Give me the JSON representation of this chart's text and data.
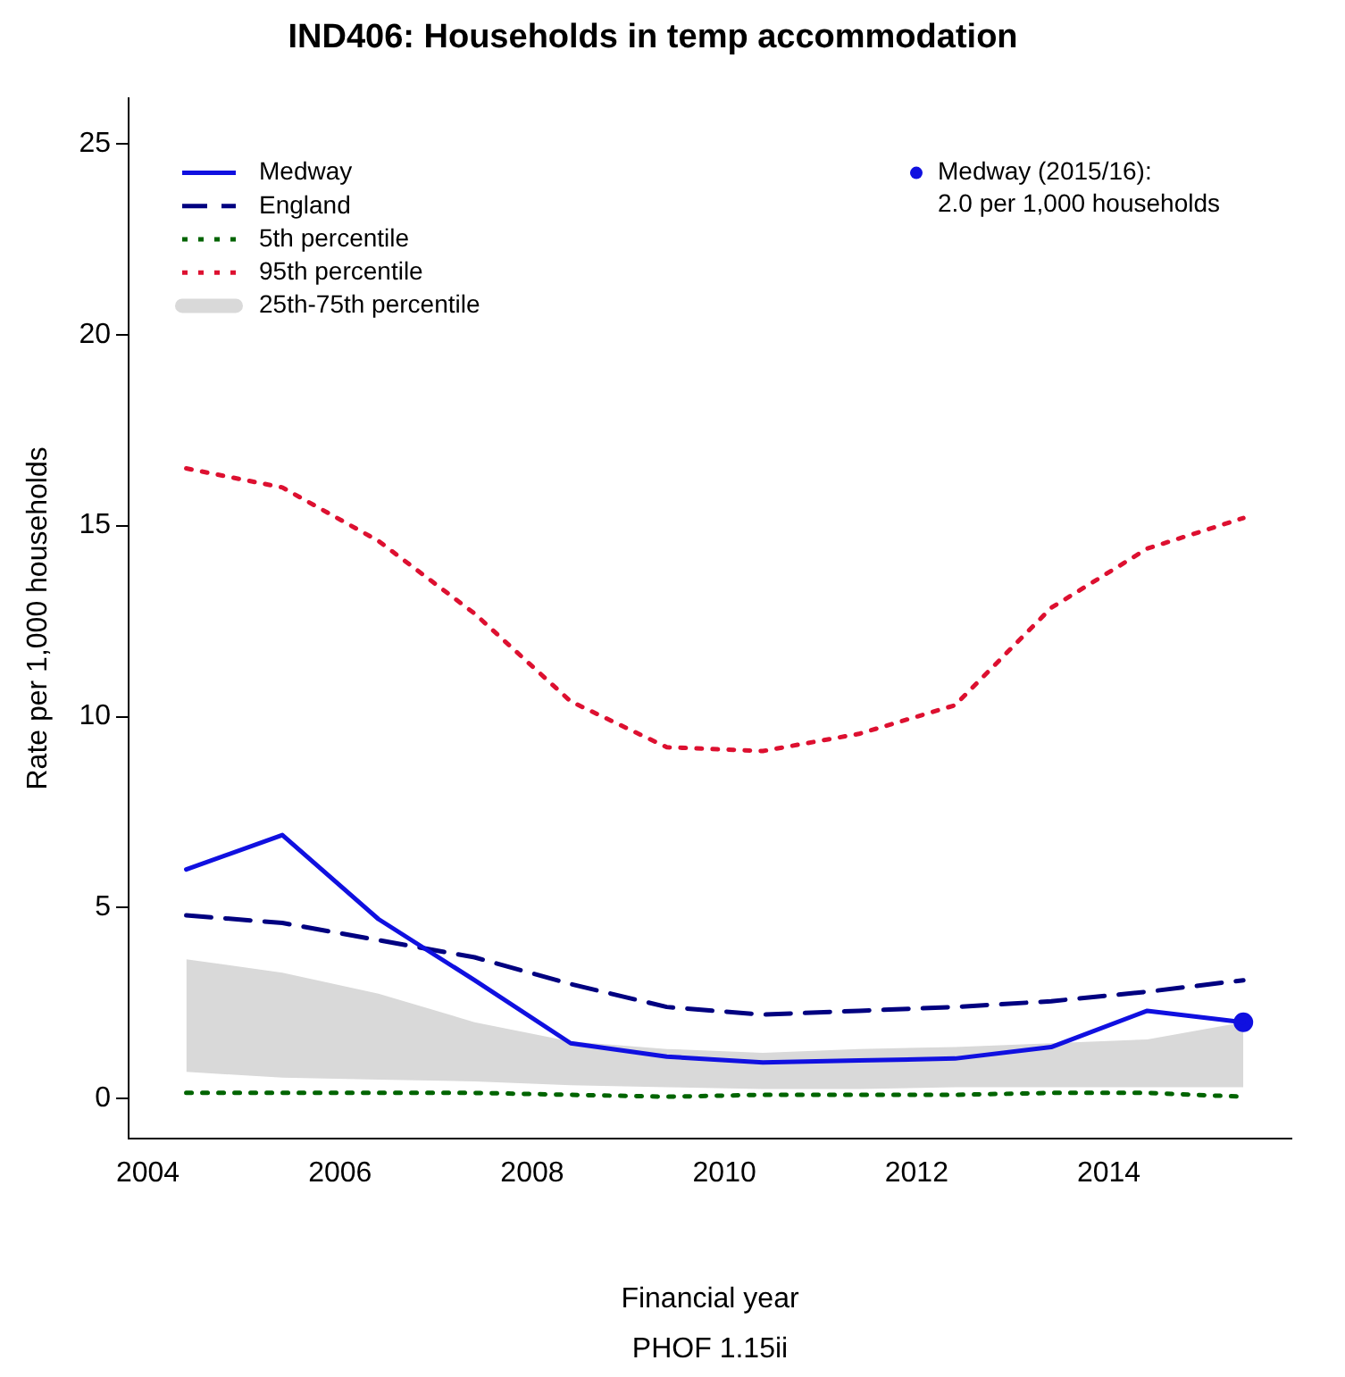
{
  "chart_data": {
    "type": "line",
    "title": "IND406: Households in temp accommodation",
    "xlabel": "Financial year",
    "ylabel": "Rate per 1,000 households",
    "annotations": [
      "PHOF 1.15ii"
    ],
    "x": [
      2004.4,
      2005.4,
      2006.4,
      2007.4,
      2008.4,
      2009.4,
      2010.4,
      2011.4,
      2012.4,
      2013.4,
      2014.4,
      2015.4
    ],
    "series": [
      {
        "name": "Medway",
        "color": "#1010e0",
        "line_style": "solid",
        "values": [
          6.0,
          6.9,
          4.7,
          3.1,
          1.45,
          1.1,
          0.95,
          1.0,
          1.05,
          1.35,
          2.3,
          2.0
        ]
      },
      {
        "name": "England",
        "color": "#000080",
        "line_style": "dashed",
        "values": [
          4.8,
          4.6,
          4.15,
          3.7,
          3.0,
          2.4,
          2.2,
          2.3,
          2.4,
          2.55,
          2.8,
          3.1
        ]
      },
      {
        "name": "5th percentile",
        "color": "#006400",
        "line_style": "dotted",
        "values": [
          0.15,
          0.15,
          0.15,
          0.15,
          0.1,
          0.05,
          0.1,
          0.1,
          0.1,
          0.15,
          0.15,
          0.05
        ]
      },
      {
        "name": "95th percentile",
        "color": "#dd1030",
        "line_style": "dotted",
        "values": [
          16.5,
          16.0,
          14.6,
          12.7,
          10.4,
          9.2,
          9.1,
          9.55,
          10.3,
          12.85,
          14.4,
          15.2
        ]
      },
      {
        "name": "25th-75th percentile",
        "type": "area",
        "color": "#d9d9d9",
        "values": [
          null,
          null,
          null,
          null,
          null,
          null,
          null,
          null,
          null,
          null,
          null,
          null
        ],
        "upper": [
          3.65,
          3.3,
          2.75,
          2.0,
          1.5,
          1.3,
          1.2,
          1.3,
          1.35,
          1.45,
          1.55,
          2.0
        ],
        "lower": [
          0.7,
          0.55,
          0.5,
          0.45,
          0.35,
          0.3,
          0.25,
          0.25,
          0.3,
          0.3,
          0.3,
          0.3
        ]
      },
      {
        "name": "Medway (2015/16):\n2.0 per 1,000 households",
        "type": "scatter",
        "marker": "circle",
        "color": "#1010e0",
        "x": [
          2015.4
        ],
        "values": [
          2.0
        ]
      }
    ],
    "xlim": [
      2003.8,
      2015.9
    ],
    "xticks": [
      2004,
      2006,
      2008,
      2010,
      2012,
      2014
    ],
    "ylim": [
      -1.05,
      26.2
    ],
    "yticks": [
      0,
      5,
      10,
      15,
      20,
      25
    ],
    "grid": false,
    "legend": "top left"
  }
}
